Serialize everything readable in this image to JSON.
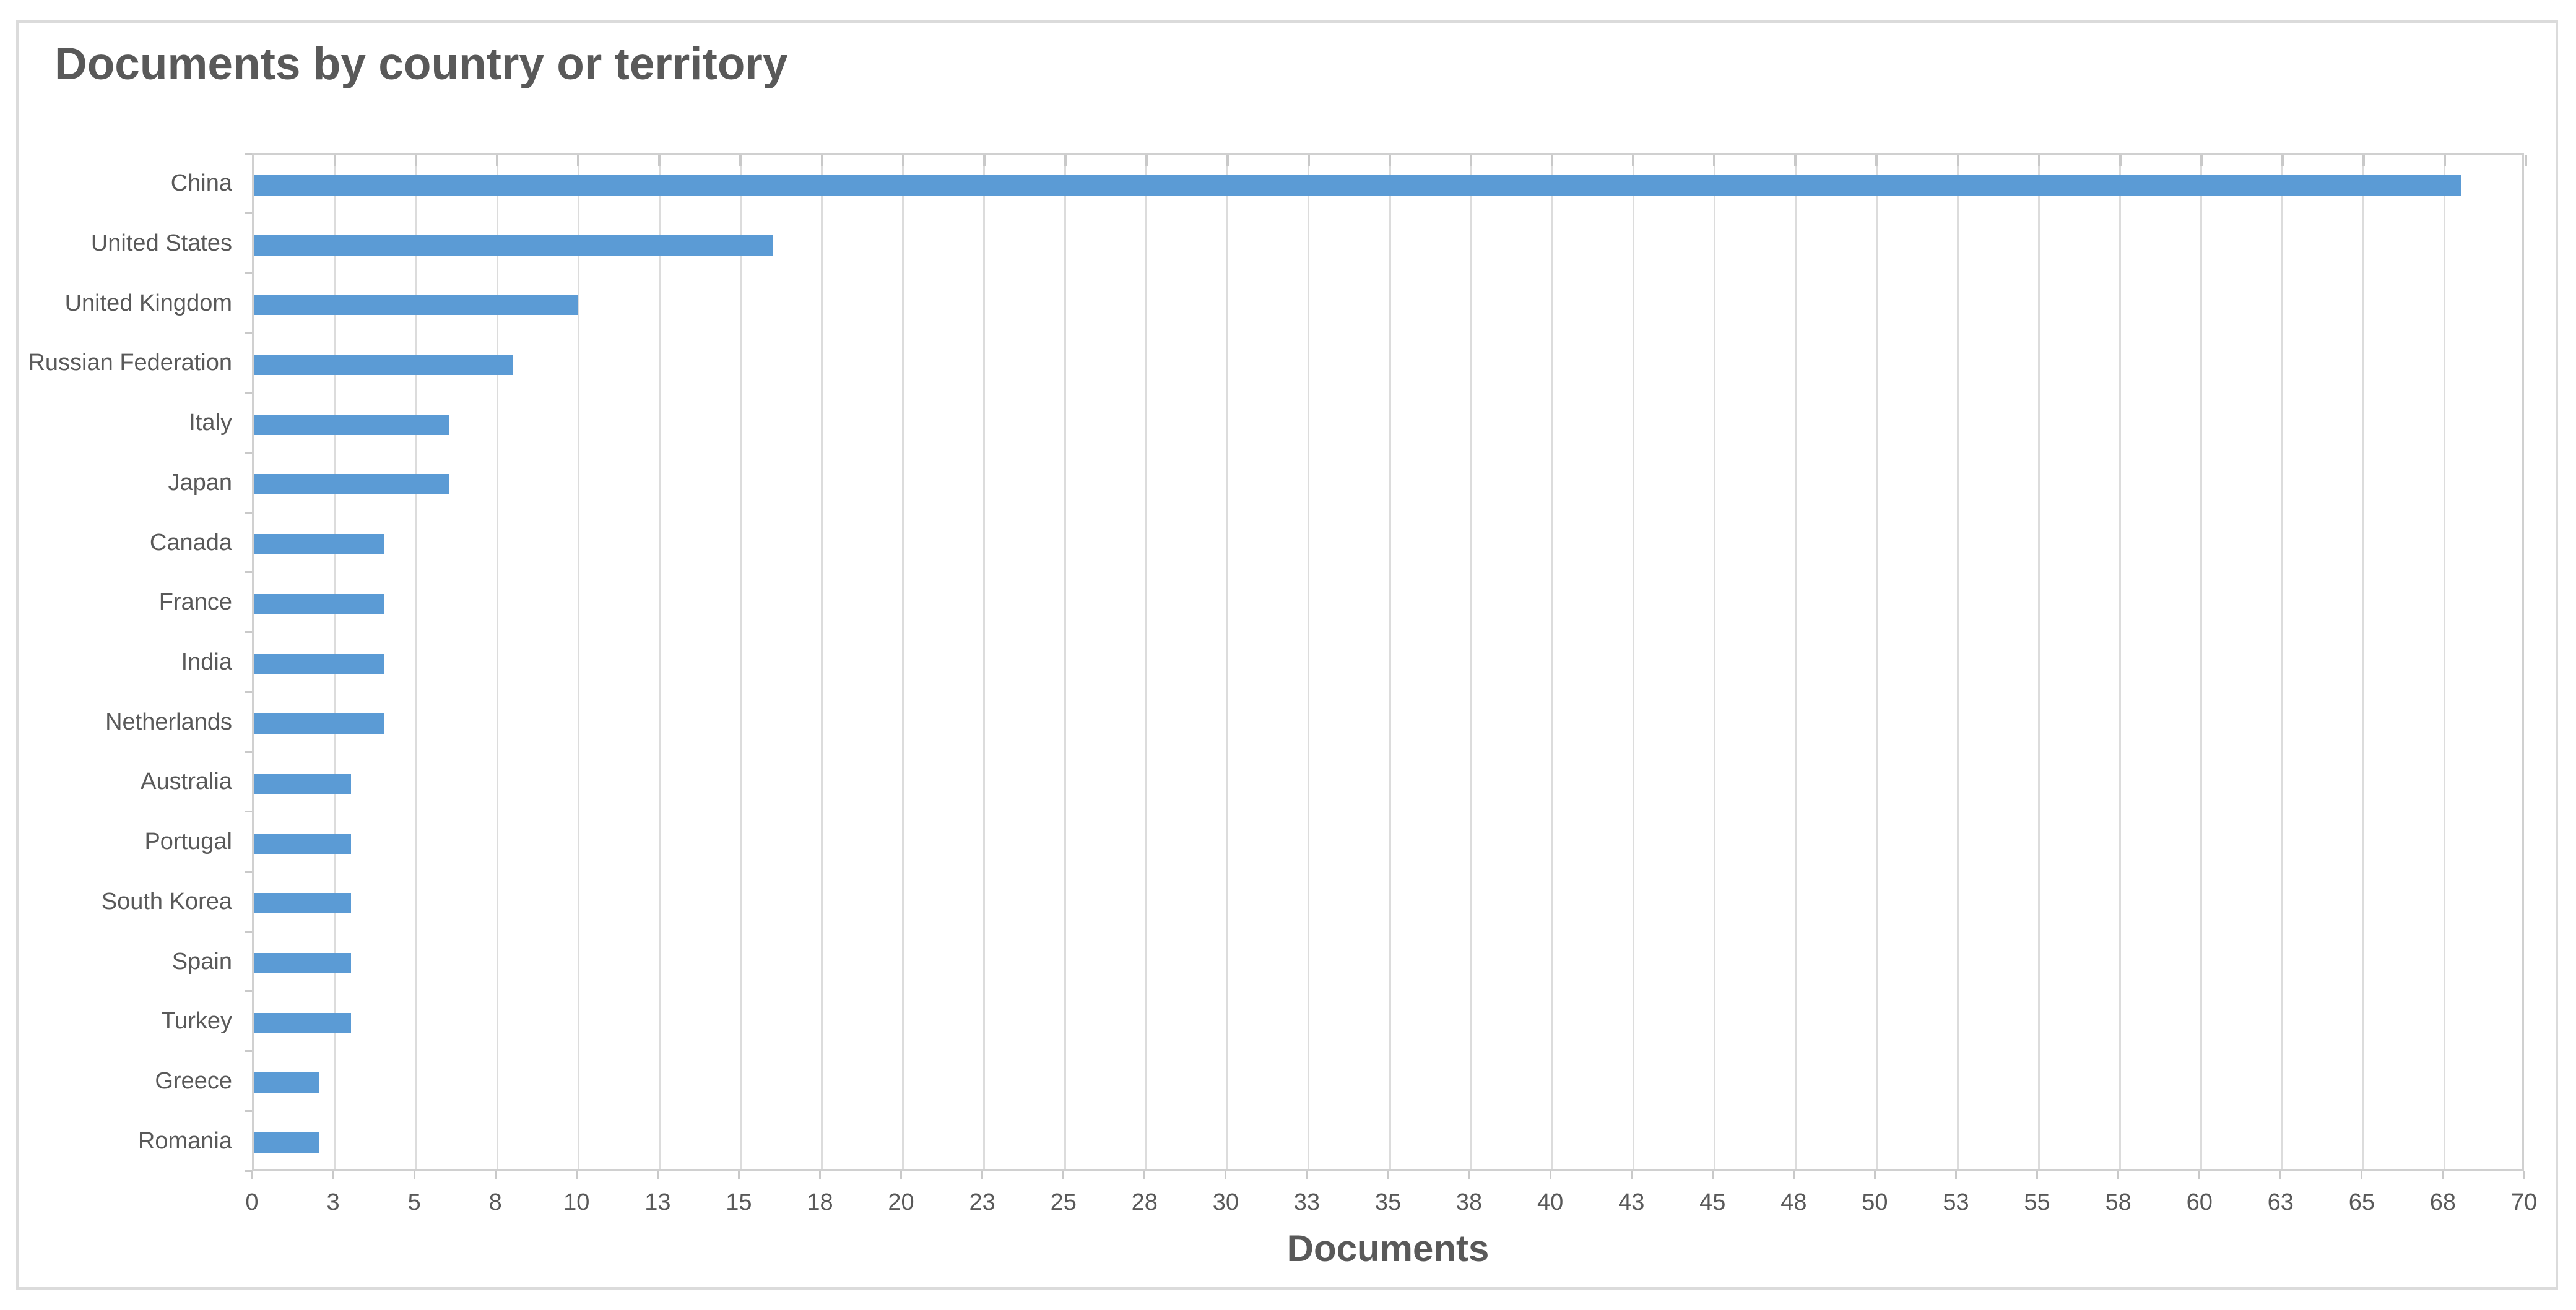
{
  "chart_data": {
    "type": "bar",
    "orientation": "horizontal",
    "title": "Documents by country or territory",
    "xlabel": "Documents",
    "ylabel": "",
    "xlim": [
      0,
      70
    ],
    "x_major_unit": 2.5,
    "grid": true,
    "legend": false,
    "bar_color": "#5B9BD5",
    "categories": [
      "China",
      "United States",
      "United Kingdom",
      "Russian Federation",
      "Italy",
      "Japan",
      "Canada",
      "France",
      "India",
      "Netherlands",
      "Australia",
      "Portugal",
      "South Korea",
      "Spain",
      "Turkey",
      "Greece",
      "Romania"
    ],
    "values": [
      68,
      16,
      10,
      8,
      6,
      6,
      4,
      4,
      4,
      4,
      3,
      3,
      3,
      3,
      3,
      2,
      2
    ],
    "x_tick_labels": [
      "0",
      "3",
      "5",
      "8",
      "10",
      "13",
      "15",
      "18",
      "20",
      "23",
      "25",
      "28",
      "30",
      "33",
      "35",
      "38",
      "40",
      "43",
      "45",
      "48",
      "50",
      "53",
      "55",
      "58",
      "60",
      "63",
      "65",
      "68",
      "70"
    ]
  },
  "colors": {
    "bar": "#5B9BD5",
    "text": "#595959",
    "gridline": "#DCDCDC",
    "axis_line": "#D0D0D0",
    "chart_border": "#DBDBDB",
    "background": "#FFFFFF"
  }
}
